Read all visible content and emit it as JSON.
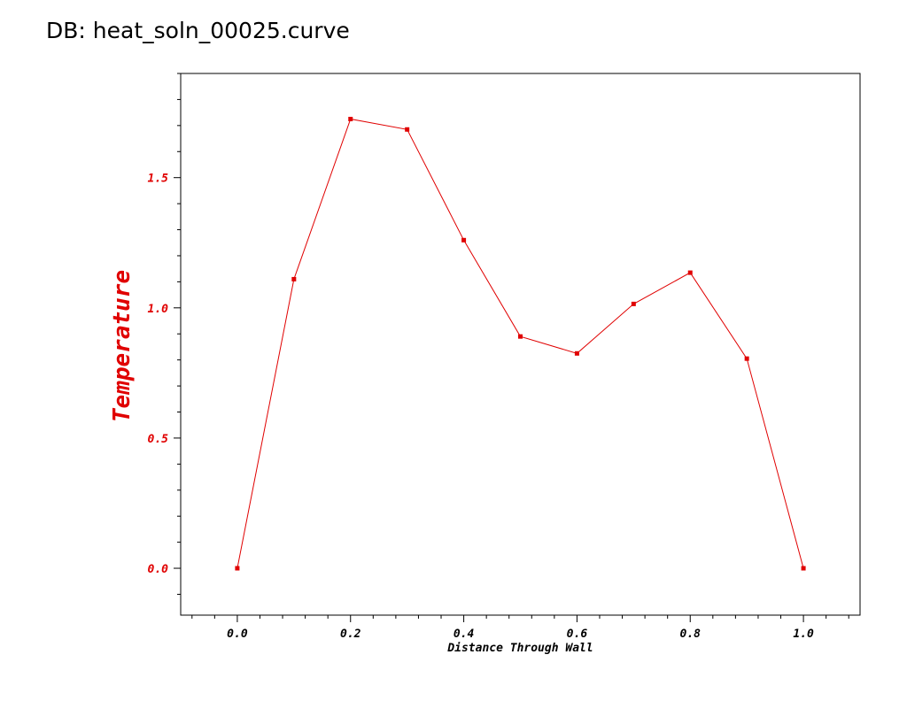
{
  "header": {
    "db_label": "DB: heat_soln_00025.curve"
  },
  "colors": {
    "curve": "#e00000",
    "y_tick_labels": "#e00000",
    "y_axis_label": "#e00000",
    "x_tick_labels": "#000000",
    "x_axis_label": "#000000",
    "frame": "#000000"
  },
  "chart_data": {
    "type": "line",
    "title": "",
    "xlabel": "Distance Through Wall",
    "ylabel": "Temperature",
    "xlim": [
      -0.1,
      1.1
    ],
    "ylim": [
      -0.18,
      1.9
    ],
    "x_ticks": [
      0.0,
      0.2,
      0.4,
      0.6,
      0.8,
      1.0
    ],
    "x_tick_labels": [
      "0.0",
      "0.2",
      "0.4",
      "0.6",
      "0.8",
      "1.0"
    ],
    "x_minor_step": 0.04,
    "y_ticks": [
      0.0,
      0.5,
      1.0,
      1.5
    ],
    "y_tick_labels": [
      "0.0",
      "0.5",
      "1.0",
      "1.5"
    ],
    "y_minor_step": 0.1,
    "grid": false,
    "series": [
      {
        "x": [
          0.0,
          0.1,
          0.2,
          0.3,
          0.4,
          0.5,
          0.6,
          0.7,
          0.8,
          0.9,
          1.0
        ],
        "y": [
          0.0,
          1.11,
          1.725,
          1.685,
          1.26,
          0.89,
          0.825,
          1.015,
          1.135,
          0.805,
          0.0
        ]
      }
    ]
  }
}
